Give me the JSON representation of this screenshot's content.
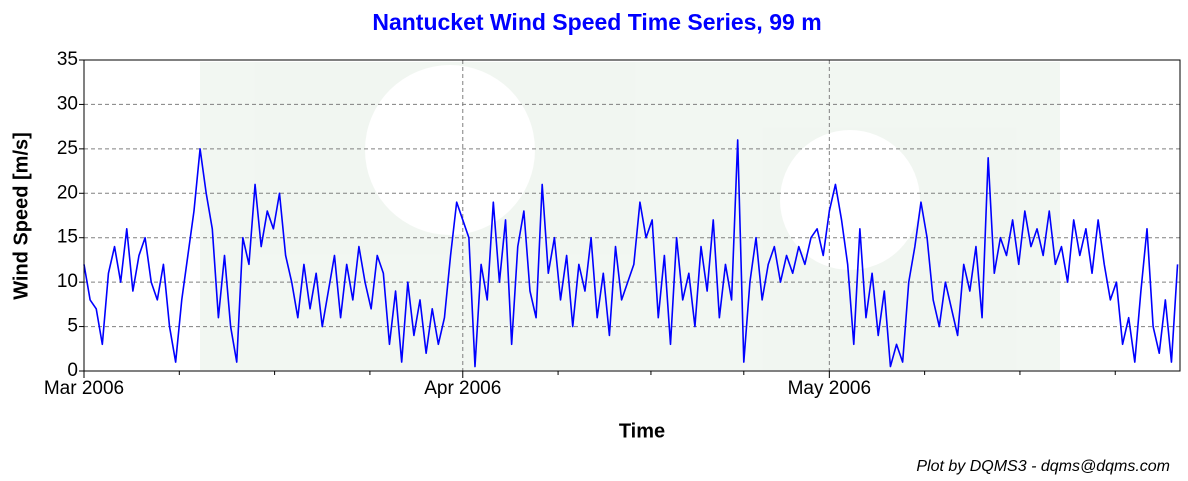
{
  "chart_data": {
    "type": "line",
    "title": "Nantucket Wind Speed Time Series, 99 m",
    "x_label": "Time",
    "y_label": "Wind Speed [m/s]",
    "footer": "Plot by DQMS3 - dqms@dqms.com",
    "color": "#0000ff",
    "grid": true,
    "xlim": [
      0,
      89.7
    ],
    "ylim": [
      0,
      35
    ],
    "yticks": [
      0,
      5,
      10,
      15,
      20,
      25,
      30,
      35
    ],
    "xticks": [
      {
        "value": 0,
        "label": "Mar 2006"
      },
      {
        "value": 31,
        "label": "Apr 2006"
      },
      {
        "value": 61,
        "label": "May 2006"
      }
    ],
    "xminorticks": [
      7.8,
      15.6,
      23.4,
      38.8,
      46.4,
      54,
      68.8,
      76.6,
      84.4
    ],
    "x": [
      0,
      0.5,
      1,
      1.5,
      2,
      2.5,
      3,
      3.5,
      4,
      4.5,
      5,
      5.5,
      6,
      6.5,
      7,
      7.5,
      8,
      8.5,
      9,
      9.5,
      10,
      10.5,
      11,
      11.5,
      12,
      12.5,
      13,
      13.5,
      14,
      14.5,
      15,
      15.5,
      16,
      16.5,
      17,
      17.5,
      18,
      18.5,
      19,
      19.5,
      20,
      20.5,
      21,
      21.5,
      22,
      22.5,
      23,
      23.5,
      24,
      24.5,
      25,
      25.5,
      26,
      26.5,
      27,
      27.5,
      28,
      28.5,
      29,
      29.5,
      30,
      30.5,
      31,
      31.5,
      32,
      32.5,
      33,
      33.5,
      34,
      34.5,
      35,
      35.5,
      36,
      36.5,
      37,
      37.5,
      38,
      38.5,
      39,
      39.5,
      40,
      40.5,
      41,
      41.5,
      42,
      42.5,
      43,
      43.5,
      44,
      44.5,
      45,
      45.5,
      46,
      46.5,
      47,
      47.5,
      48,
      48.5,
      49,
      49.5,
      50,
      50.5,
      51,
      51.5,
      52,
      52.5,
      53,
      53.5,
      54,
      54.5,
      55,
      55.5,
      56,
      56.5,
      57,
      57.5,
      58,
      58.5,
      59,
      59.5,
      60,
      60.5,
      61,
      61.5,
      62,
      62.5,
      63,
      63.5,
      64,
      64.5,
      65,
      65.5,
      66,
      66.5,
      67,
      67.5,
      68,
      68.5,
      69,
      69.5,
      70,
      70.5,
      71,
      71.5,
      72,
      72.5,
      73,
      73.5,
      74,
      74.5,
      75,
      75.5,
      76,
      76.5,
      77,
      77.5,
      78,
      78.5,
      79,
      79.5,
      80,
      80.5,
      81,
      81.5,
      82,
      82.5,
      83,
      83.5,
      84,
      84.5,
      85,
      85.5,
      86,
      86.5,
      87,
      87.5,
      88,
      88.5,
      89,
      89.5
    ],
    "values": [
      12,
      8,
      7,
      3,
      11,
      14,
      10,
      16,
      9,
      13,
      15,
      10,
      8,
      12,
      5,
      1,
      8,
      13,
      18,
      25,
      20,
      16,
      6,
      13,
      5,
      1,
      15,
      12,
      21,
      14,
      18,
      16,
      20,
      13,
      10,
      6,
      12,
      7,
      11,
      5,
      9,
      13,
      6,
      12,
      8,
      14,
      10,
      7,
      13,
      11,
      3,
      9,
      1,
      10,
      4,
      8,
      2,
      7,
      3,
      6,
      13,
      19,
      17,
      15,
      0.5,
      12,
      8,
      19,
      10,
      17,
      3,
      14,
      18,
      9,
      6,
      21,
      11,
      15,
      8,
      13,
      5,
      12,
      9,
      15,
      6,
      11,
      4,
      14,
      8,
      10,
      12,
      19,
      15,
      17,
      6,
      13,
      3,
      15,
      8,
      11,
      5,
      14,
      9,
      17,
      6,
      12,
      8,
      26,
      1,
      10,
      15,
      8,
      12,
      14,
      10,
      13,
      11,
      14,
      12,
      15,
      16,
      13,
      18,
      21,
      17,
      12,
      3,
      16,
      6,
      11,
      4,
      9,
      0.5,
      3,
      1,
      10,
      14,
      19,
      15,
      8,
      5,
      10,
      7,
      4,
      12,
      9,
      14,
      6,
      24,
      11,
      15,
      13,
      17,
      12,
      18,
      14,
      16,
      13,
      18,
      12,
      14,
      10,
      17,
      13,
      16,
      11,
      17,
      12,
      8,
      10,
      3,
      6,
      1,
      9,
      16,
      5,
      2,
      8,
      1,
      12
    ]
  }
}
